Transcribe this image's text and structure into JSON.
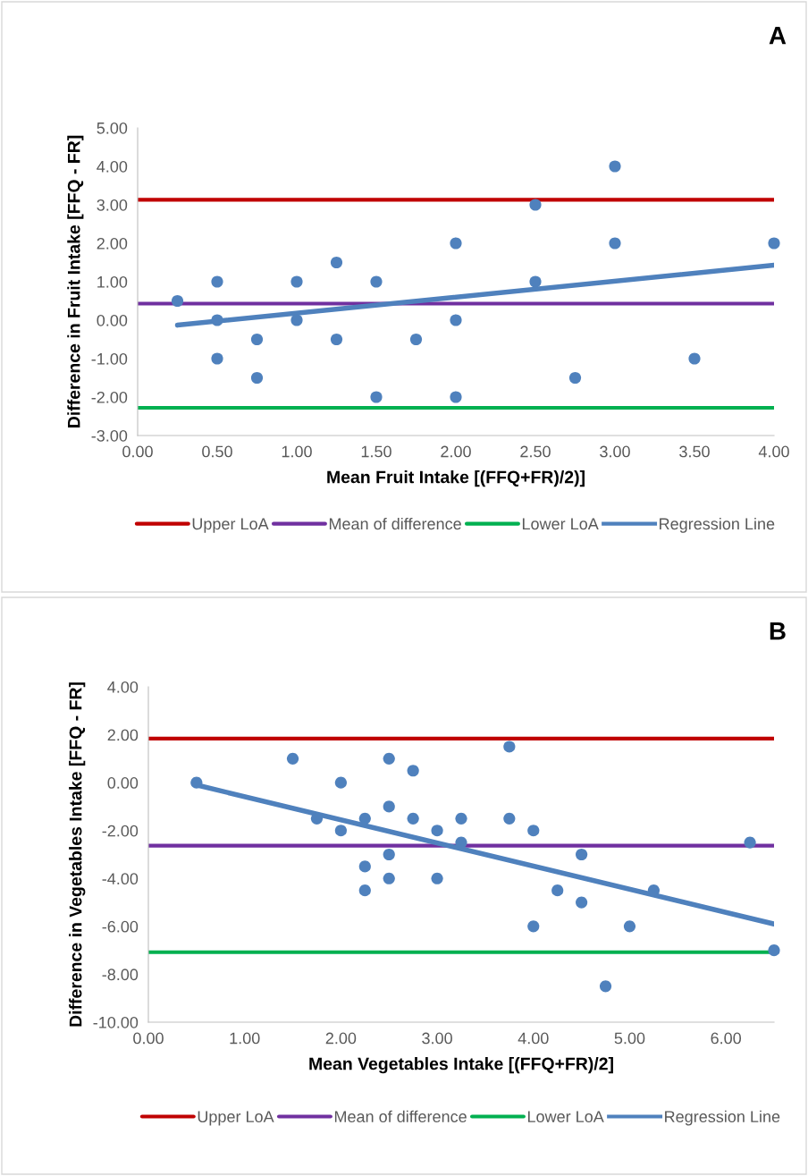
{
  "chart_data": [
    {
      "type": "scatter",
      "title": "A",
      "xlabel": "Mean Fruit Intake [(FFQ+FR)/2)]",
      "ylabel": "Difference in Fruit Intake [FFQ - FR]",
      "xlim": [
        0,
        4
      ],
      "xticks": [
        {
          "value": 0,
          "label": "0.00"
        },
        {
          "value": 0.5,
          "label": "0.50"
        },
        {
          "value": 1,
          "label": "1.00"
        },
        {
          "value": 1.5,
          "label": "1.50"
        },
        {
          "value": 2,
          "label": "2.00"
        },
        {
          "value": 2.5,
          "label": "2.50"
        },
        {
          "value": 3,
          "label": "3.00"
        },
        {
          "value": 3.5,
          "label": "3.50"
        },
        {
          "value": 4,
          "label": "4.00"
        }
      ],
      "ylim": [
        -3,
        5
      ],
      "yticks": [
        {
          "value": -3,
          "label": "-3.00"
        },
        {
          "value": -2,
          "label": "-2.00"
        },
        {
          "value": -1,
          "label": "-1.00"
        },
        {
          "value": 0,
          "label": "0.00"
        },
        {
          "value": 1,
          "label": "1.00"
        },
        {
          "value": 2,
          "label": "2.00"
        },
        {
          "value": 3,
          "label": "3.00"
        },
        {
          "value": 4,
          "label": "4.00"
        },
        {
          "value": 5,
          "label": "5.00"
        }
      ],
      "grid": false,
      "legend": "bottom",
      "ref_lines": [
        {
          "axis": "y",
          "value": 3.13,
          "label": "Upper LoA",
          "color": "#c00000"
        },
        {
          "axis": "y",
          "value": 0.43,
          "label": "Mean of difference",
          "color": "#7030a0"
        },
        {
          "axis": "y",
          "value": -2.28,
          "label": "Lower LoA",
          "color": "#00b050"
        }
      ],
      "series": [
        {
          "marker": "circle",
          "color": "#4f81bd",
          "x": [
            0.25,
            0.5,
            0.5,
            0.5,
            0.75,
            0.75,
            1,
            1,
            1.25,
            1.25,
            1.5,
            1.5,
            1.75,
            2,
            2,
            2,
            2.5,
            2.5,
            2.75,
            3,
            3,
            3.5,
            4
          ],
          "values": [
            0.5,
            1,
            0,
            -1,
            -0.5,
            -1.5,
            1,
            0,
            1.5,
            -0.5,
            1,
            -2,
            -0.5,
            2,
            0,
            -2,
            3,
            1,
            -1.5,
            4,
            2,
            -1,
            2
          ]
        },
        {
          "type": "line",
          "name": "Regression Line",
          "color": "#4f81bd",
          "x": [
            0.25,
            4
          ],
          "values": [
            -0.13,
            1.43
          ]
        }
      ]
    },
    {
      "type": "scatter",
      "title": "B",
      "xlabel": "Mean Vegetables Intake [(FFQ+FR)/2]",
      "ylabel": "Difference in Vegetables Intake [FFQ - FR]",
      "xlim": [
        0,
        6.5
      ],
      "xticks": [
        {
          "value": 0,
          "label": "0.00"
        },
        {
          "value": 1,
          "label": "1.00"
        },
        {
          "value": 2,
          "label": "2.00"
        },
        {
          "value": 3,
          "label": "3.00"
        },
        {
          "value": 4,
          "label": "4.00"
        },
        {
          "value": 5,
          "label": "5.00"
        },
        {
          "value": 6,
          "label": "6.00"
        }
      ],
      "ylim": [
        -10,
        4
      ],
      "yticks": [
        {
          "value": -10,
          "label": "-10.00"
        },
        {
          "value": -8,
          "label": "-8.00"
        },
        {
          "value": -6,
          "label": "-6.00"
        },
        {
          "value": -4,
          "label": "-4.00"
        },
        {
          "value": -2,
          "label": "-2.00"
        },
        {
          "value": 0,
          "label": "0.00"
        },
        {
          "value": 2,
          "label": "2.00"
        },
        {
          "value": 4,
          "label": "4.00"
        }
      ],
      "grid": false,
      "legend": "bottom",
      "ref_lines": [
        {
          "axis": "y",
          "value": 1.84,
          "label": "Upper LoA",
          "color": "#c00000"
        },
        {
          "axis": "y",
          "value": -2.63,
          "label": "Mean of difference",
          "color": "#7030a0"
        },
        {
          "axis": "y",
          "value": -7.08,
          "label": "Lower LoA",
          "color": "#00b050"
        }
      ],
      "series": [
        {
          "marker": "circle",
          "color": "#4f81bd",
          "x": [
            0.5,
            1.5,
            1.75,
            2,
            2,
            2.25,
            2.25,
            2.25,
            2.5,
            2.5,
            2.5,
            2.5,
            2.75,
            2.75,
            3,
            3,
            3.25,
            3.25,
            3.75,
            3.75,
            4,
            4,
            4.25,
            4.5,
            4.5,
            4.75,
            5,
            5.25,
            6.25,
            6.5
          ],
          "values": [
            0,
            1,
            -1.5,
            0,
            -2,
            -1.5,
            -3.5,
            -4.5,
            1,
            -1,
            -3,
            -4,
            0.5,
            -1.5,
            -2,
            -4,
            -1.5,
            -2.5,
            1.5,
            -1.5,
            -2,
            -6,
            -4.5,
            -3,
            -5,
            -8.5,
            -6,
            -4.5,
            -2.5,
            -7
          ]
        },
        {
          "type": "line",
          "name": "Regression Line",
          "color": "#4f81bd",
          "x": [
            0.5,
            6.5
          ],
          "values": [
            -0.1,
            -5.9
          ]
        }
      ]
    }
  ]
}
